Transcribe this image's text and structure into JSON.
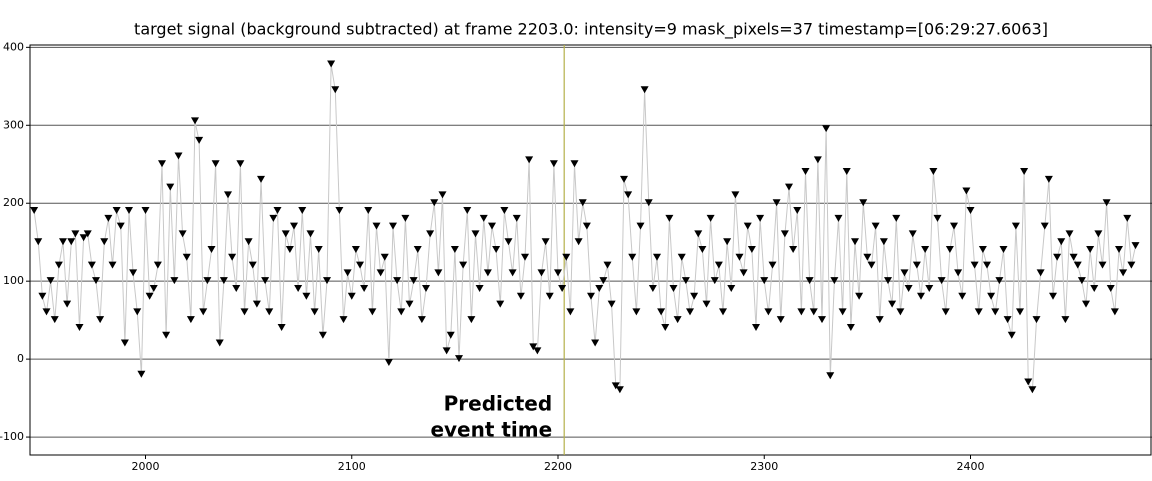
{
  "chart_data": {
    "type": "line",
    "title": "target signal (background subtracted) at frame 2203.0: intensity=9 mask_pixels=37 timestamp=[06:29:27.6063]",
    "xlim": [
      1944,
      2488
    ],
    "ylim": [
      -123,
      403
    ],
    "xticks": [
      2000,
      2100,
      2200,
      2300,
      2400
    ],
    "yticks": [
      -100,
      0,
      100,
      200,
      300,
      400
    ],
    "grid": true,
    "event_line": {
      "x": 2203,
      "color": "#b5b04a"
    },
    "annotation": {
      "lines": [
        "Predicted",
        "event time"
      ]
    },
    "x": [
      1946,
      1948,
      1950,
      1952,
      1954,
      1956,
      1958,
      1960,
      1962,
      1964,
      1966,
      1968,
      1970,
      1972,
      1974,
      1976,
      1978,
      1980,
      1982,
      1984,
      1986,
      1988,
      1990,
      1992,
      1994,
      1996,
      1998,
      2000,
      2002,
      2004,
      2006,
      2008,
      2010,
      2012,
      2014,
      2016,
      2018,
      2020,
      2022,
      2024,
      2026,
      2028,
      2030,
      2032,
      2034,
      2036,
      2038,
      2040,
      2042,
      2044,
      2046,
      2048,
      2050,
      2052,
      2054,
      2056,
      2058,
      2060,
      2062,
      2064,
      2066,
      2068,
      2070,
      2072,
      2074,
      2076,
      2078,
      2080,
      2082,
      2084,
      2086,
      2088,
      2090,
      2092,
      2094,
      2096,
      2098,
      2100,
      2102,
      2104,
      2106,
      2108,
      2110,
      2112,
      2114,
      2116,
      2118,
      2120,
      2122,
      2124,
      2126,
      2128,
      2130,
      2132,
      2134,
      2136,
      2138,
      2140,
      2142,
      2144,
      2146,
      2148,
      2150,
      2152,
      2154,
      2156,
      2158,
      2160,
      2162,
      2164,
      2166,
      2168,
      2170,
      2172,
      2174,
      2176,
      2178,
      2180,
      2182,
      2184,
      2186,
      2188,
      2190,
      2192,
      2194,
      2196,
      2198,
      2200,
      2202,
      2204,
      2206,
      2208,
      2210,
      2212,
      2214,
      2216,
      2218,
      2220,
      2222,
      2224,
      2226,
      2228,
      2230,
      2232,
      2234,
      2236,
      2238,
      2240,
      2242,
      2244,
      2246,
      2248,
      2250,
      2252,
      2254,
      2256,
      2258,
      2260,
      2262,
      2264,
      2266,
      2268,
      2270,
      2272,
      2274,
      2276,
      2278,
      2280,
      2282,
      2284,
      2286,
      2288,
      2290,
      2292,
      2294,
      2296,
      2298,
      2300,
      2302,
      2304,
      2306,
      2308,
      2310,
      2312,
      2314,
      2316,
      2318,
      2320,
      2322,
      2324,
      2326,
      2328,
      2330,
      2332,
      2334,
      2336,
      2338,
      2340,
      2342,
      2344,
      2346,
      2348,
      2350,
      2352,
      2354,
      2356,
      2358,
      2360,
      2362,
      2364,
      2366,
      2368,
      2370,
      2372,
      2374,
      2376,
      2378,
      2380,
      2382,
      2384,
      2386,
      2388,
      2390,
      2392,
      2394,
      2396,
      2398,
      2400,
      2402,
      2404,
      2406,
      2408,
      2410,
      2412,
      2414,
      2416,
      2418,
      2420,
      2422,
      2424,
      2426,
      2428,
      2430,
      2432,
      2434,
      2436,
      2438,
      2440,
      2442,
      2444,
      2446,
      2448,
      2450,
      2452,
      2454,
      2456,
      2458,
      2460,
      2462,
      2464,
      2466,
      2468,
      2470,
      2472,
      2474,
      2476,
      2478,
      2480
    ],
    "series": [
      {
        "color": "#000000",
        "line_color": "#c8c8c8",
        "values": [
          190,
          150,
          80,
          60,
          100,
          50,
          120,
          150,
          70,
          150,
          160,
          40,
          155,
          160,
          120,
          100,
          50,
          150,
          180,
          120,
          190,
          170,
          20,
          190,
          110,
          60,
          -20,
          190,
          80,
          90,
          120,
          250,
          30,
          220,
          100,
          260,
          160,
          130,
          50,
          305,
          280,
          60,
          100,
          140,
          250,
          20,
          100,
          210,
          130,
          90,
          250,
          60,
          150,
          120,
          70,
          230,
          100,
          60,
          180,
          190,
          40,
          160,
          140,
          170,
          90,
          190,
          80,
          160,
          60,
          140,
          30,
          100,
          378,
          345,
          190,
          50,
          110,
          80,
          140,
          120,
          90,
          190,
          60,
          170,
          110,
          130,
          -5,
          170,
          100,
          60,
          180,
          70,
          100,
          140,
          50,
          90,
          160,
          200,
          110,
          210,
          10,
          30,
          140,
          0,
          120,
          190,
          50,
          160,
          90,
          180,
          110,
          170,
          140,
          70,
          190,
          150,
          110,
          180,
          80,
          130,
          255,
          15,
          10,
          110,
          150,
          80,
          250,
          110,
          90,
          130,
          60,
          250,
          150,
          200,
          170,
          80,
          20,
          90,
          100,
          120,
          70,
          -35,
          -40,
          230,
          210,
          130,
          60,
          170,
          345,
          200,
          90,
          130,
          60,
          40,
          180,
          90,
          50,
          130,
          100,
          60,
          80,
          160,
          140,
          70,
          180,
          100,
          120,
          60,
          150,
          90,
          210,
          130,
          110,
          170,
          140,
          40,
          180,
          100,
          60,
          120,
          200,
          50,
          160,
          220,
          140,
          190,
          60,
          240,
          100,
          60,
          255,
          50,
          295,
          -22,
          100,
          180,
          60,
          240,
          40,
          150,
          80,
          200,
          130,
          120,
          170,
          50,
          150,
          100,
          70,
          180,
          60,
          110,
          90,
          160,
          120,
          80,
          140,
          90,
          240,
          180,
          100,
          60,
          140,
          170,
          110,
          80,
          215,
          190,
          120,
          60,
          140,
          120,
          80,
          60,
          100,
          140,
          50,
          30,
          170,
          60,
          240,
          -30,
          -40,
          50,
          110,
          170,
          230,
          80,
          130,
          150,
          50,
          160,
          130,
          120,
          100,
          70,
          140,
          90,
          160,
          120,
          200,
          90,
          60,
          140,
          110,
          180,
          120,
          145
        ]
      }
    ]
  }
}
